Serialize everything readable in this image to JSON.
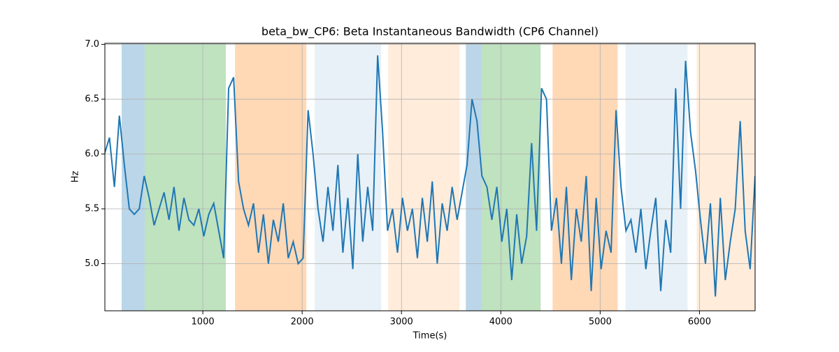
{
  "chart_data": {
    "type": "line",
    "title": "beta_bw_CP6: Beta Instantaneous Bandwidth (CP6 Channel)",
    "xlabel": "Time(s)",
    "ylabel": "Hz",
    "color": "#1f77b4",
    "x": [
      10,
      60,
      110,
      160,
      210,
      260,
      310,
      360,
      410,
      460,
      510,
      560,
      610,
      660,
      710,
      760,
      810,
      860,
      910,
      960,
      1010,
      1060,
      1110,
      1160,
      1210,
      1260,
      1310,
      1360,
      1410,
      1460,
      1510,
      1560,
      1610,
      1660,
      1710,
      1760,
      1810,
      1860,
      1910,
      1960,
      2010,
      2060,
      2110,
      2160,
      2210,
      2260,
      2310,
      2360,
      2410,
      2460,
      2510,
      2560,
      2610,
      2660,
      2710,
      2760,
      2810,
      2860,
      2910,
      2960,
      3010,
      3060,
      3110,
      3160,
      3210,
      3260,
      3310,
      3360,
      3410,
      3460,
      3510,
      3560,
      3610,
      3660,
      3710,
      3760,
      3810,
      3860,
      3910,
      3960,
      4010,
      4060,
      4110,
      4160,
      4210,
      4260,
      4310,
      4360,
      4410,
      4460,
      4510,
      4560,
      4610,
      4660,
      4710,
      4760,
      4810,
      4860,
      4910,
      4960,
      5010,
      5060,
      5110,
      5160,
      5210,
      5260,
      5310,
      5360,
      5410,
      5460,
      5510,
      5560,
      5610,
      5660,
      5710,
      5760,
      5810,
      5860,
      5910,
      5960,
      6010,
      6060,
      6110,
      6160,
      6210,
      6260,
      6310,
      6360,
      6410,
      6460,
      6510,
      6560
    ],
    "values": [
      6.0,
      6.15,
      5.7,
      6.35,
      5.9,
      5.5,
      5.45,
      5.5,
      5.8,
      5.6,
      5.35,
      5.5,
      5.65,
      5.4,
      5.7,
      5.3,
      5.6,
      5.4,
      5.35,
      5.5,
      5.25,
      5.45,
      5.55,
      5.3,
      5.05,
      6.6,
      6.7,
      5.75,
      5.5,
      5.35,
      5.55,
      5.1,
      5.45,
      5.0,
      5.4,
      5.2,
      5.55,
      5.05,
      5.2,
      5.0,
      5.05,
      6.4,
      6.0,
      5.5,
      5.2,
      5.7,
      5.3,
      5.9,
      5.1,
      5.6,
      4.95,
      6.0,
      5.2,
      5.7,
      5.3,
      6.9,
      6.2,
      5.3,
      5.5,
      5.1,
      5.6,
      5.3,
      5.5,
      5.05,
      5.6,
      5.2,
      5.75,
      5.0,
      5.55,
      5.3,
      5.7,
      5.4,
      5.65,
      5.9,
      6.5,
      6.3,
      5.8,
      5.7,
      5.4,
      5.7,
      5.2,
      5.5,
      4.85,
      5.45,
      5.0,
      5.25,
      6.1,
      5.3,
      6.6,
      6.5,
      5.3,
      5.6,
      5.0,
      5.7,
      4.85,
      5.5,
      5.2,
      5.8,
      4.75,
      5.6,
      4.95,
      5.3,
      5.1,
      6.4,
      5.7,
      5.3,
      5.4,
      5.1,
      5.5,
      4.95,
      5.3,
      5.6,
      4.75,
      5.4,
      5.1,
      6.6,
      5.5,
      6.85,
      6.2,
      5.85,
      5.4,
      5.0,
      5.55,
      4.7,
      5.6,
      4.85,
      5.2,
      5.5,
      6.3,
      5.3,
      4.95,
      5.8
    ],
    "spans": [
      {
        "start": 183,
        "end": 415,
        "color": "#1f77b44d"
      },
      {
        "start": 415,
        "end": 1232,
        "color": "#2ca02c4d"
      },
      {
        "start": 1324,
        "end": 2042,
        "color": "#ff7f0e4d"
      },
      {
        "start": 2127,
        "end": 2796,
        "color": "#1f77b41a"
      },
      {
        "start": 2866,
        "end": 3585,
        "color": "#ff7f0e26"
      },
      {
        "start": 3648,
        "end": 3810,
        "color": "#1f77b44d"
      },
      {
        "start": 3810,
        "end": 4401,
        "color": "#2ca02c4d"
      },
      {
        "start": 4521,
        "end": 5176,
        "color": "#ff7f0e4d"
      },
      {
        "start": 5254,
        "end": 5880,
        "color": "#1f77b41a"
      },
      {
        "start": 5972,
        "end": 6560,
        "color": "#ff7f0e26"
      }
    ],
    "xlim": [
      14,
      6560
    ],
    "ylim": [
      4.57,
      7.01
    ],
    "xticks": [
      1000,
      2000,
      3000,
      4000,
      5000,
      6000
    ],
    "yticks": [
      {
        "value": 5.0,
        "label": "5.0"
      },
      {
        "value": 5.5,
        "label": "5.5"
      },
      {
        "value": 6.0,
        "label": "6.0"
      },
      {
        "value": 6.5,
        "label": "6.5"
      },
      {
        "value": 7.0,
        "label": "7.0"
      }
    ],
    "grid": true
  }
}
